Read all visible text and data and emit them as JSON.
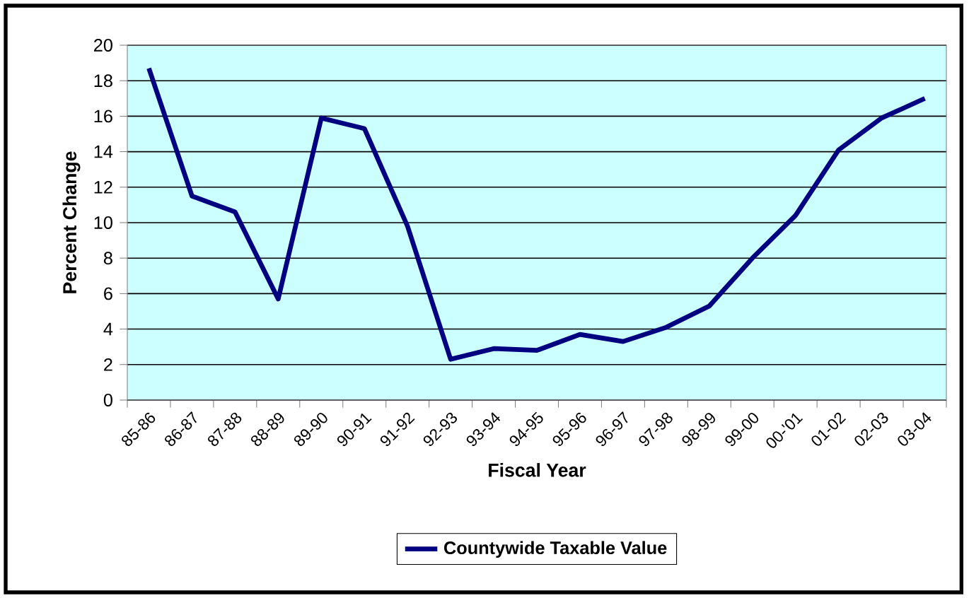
{
  "chart_data": {
    "type": "line",
    "xlabel": "Fiscal Year",
    "ylabel": "Percent Change",
    "categories": [
      "85-86",
      "86-87",
      "87-88",
      "88-89",
      "89-90",
      "90-91",
      "91-92",
      "92-93",
      "93-94",
      "94-95",
      "95-96",
      "96-97",
      "97-98",
      "98-99",
      "99-00",
      "00-'01",
      "01-02",
      "02-03",
      "03-04"
    ],
    "series": [
      {
        "name": "Countywide Taxable Value",
        "color": "#000080",
        "values": [
          18.7,
          11.5,
          10.6,
          5.7,
          15.9,
          15.3,
          9.8,
          2.3,
          2.9,
          2.8,
          3.7,
          3.3,
          4.1,
          5.3,
          8.0,
          10.4,
          14.1,
          15.9,
          17.0
        ]
      }
    ],
    "ylim": [
      0,
      20
    ],
    "yticks": [
      0,
      2,
      4,
      6,
      8,
      10,
      12,
      14,
      16,
      18,
      20
    ],
    "grid": "y",
    "legend": "bottom",
    "marker": "none",
    "line_style": "solid"
  }
}
